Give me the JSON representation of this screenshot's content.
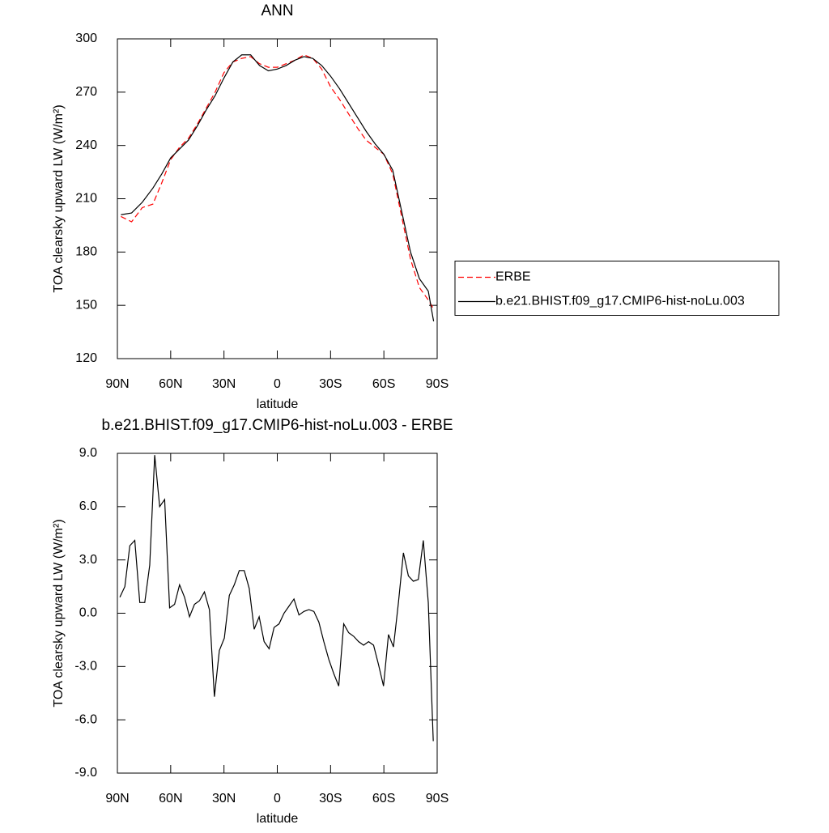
{
  "chart_data": [
    {
      "type": "line",
      "title": "ANN",
      "xlabel": "latitude",
      "ylabel": "TOA clearsky upward LW (W/m²)",
      "x": [
        88,
        82,
        76,
        70,
        65,
        60,
        55,
        50,
        45,
        40,
        35,
        30,
        25,
        20,
        15,
        10,
        5,
        0,
        -5,
        -10,
        -15,
        -20,
        -25,
        -30,
        -35,
        -40,
        -45,
        -50,
        -55,
        -60,
        -65,
        -70,
        -75,
        -80,
        -85,
        -88
      ],
      "series": [
        {
          "name": "ERBE",
          "color": "#ff0000",
          "line_style": "dashed",
          "values": [
            200,
            197,
            205,
            207,
            219,
            232,
            239,
            244,
            252,
            261,
            270,
            281,
            287,
            289,
            290,
            286,
            284,
            284,
            286,
            288,
            291,
            289,
            283,
            273,
            266,
            258,
            250,
            243,
            239,
            235,
            224,
            200,
            176,
            160,
            153,
            148
          ]
        },
        {
          "name": "b.e21.BHIST.f09_g17.CMIP6-hist-noLu.003",
          "color": "#000000",
          "line_style": "solid",
          "values": [
            201,
            202,
            208,
            216,
            224,
            233,
            238,
            243,
            251,
            260,
            268,
            278,
            287,
            291,
            291,
            285,
            282,
            283,
            285,
            288,
            290,
            289,
            285,
            279,
            272,
            264,
            256,
            248,
            241,
            235,
            226,
            203,
            180,
            165,
            158,
            141
          ]
        }
      ],
      "xlim": [
        90,
        -90
      ],
      "xticks": [
        {
          "value": 90,
          "label": "90N"
        },
        {
          "value": 60,
          "label": "60N"
        },
        {
          "value": 30,
          "label": "30N"
        },
        0,
        {
          "value": -30,
          "label": "30S"
        },
        {
          "value": -60,
          "label": "60S"
        },
        {
          "value": -90,
          "label": "90S"
        }
      ],
      "ylim": [
        120,
        300
      ],
      "yticks": [
        120,
        150,
        180,
        210,
        240,
        270,
        300
      ],
      "legend": "right"
    },
    {
      "type": "line",
      "title": "b.e21.BHIST.f09_g17.CMIP6-hist-noLu.003 - ERBE",
      "xlabel": "latitude",
      "ylabel": "TOA clearsky upward LW (W/m²)",
      "x": [
        88.6,
        85.8,
        83.0,
        80.2,
        77.4,
        74.6,
        71.8,
        69.0,
        66.2,
        63.4,
        60.6,
        57.8,
        55.0,
        52.2,
        49.4,
        46.6,
        43.8,
        41.0,
        38.2,
        35.4,
        32.6,
        29.8,
        27.0,
        24.2,
        21.4,
        18.6,
        15.8,
        13.0,
        10.2,
        7.4,
        4.6,
        1.8,
        -1.0,
        -3.8,
        -6.6,
        -9.4,
        -12.2,
        -15.0,
        -17.8,
        -20.6,
        -23.4,
        -26.2,
        -29.0,
        -31.8,
        -34.6,
        -37.4,
        -40.2,
        -43.0,
        -45.8,
        -48.6,
        -51.4,
        -54.2,
        -57.0,
        -59.8,
        -62.6,
        -65.4,
        -68.2,
        -71.0,
        -73.8,
        -76.6,
        -79.4,
        -82.2,
        -85.0,
        -87.8
      ],
      "values": [
        0.9,
        1.5,
        3.8,
        4.1,
        0.6,
        0.6,
        2.7,
        8.9,
        6.0,
        6.4,
        0.3,
        0.5,
        1.6,
        0.9,
        -0.2,
        0.5,
        0.7,
        1.2,
        0.2,
        -4.7,
        -2.1,
        -1.4,
        1.0,
        1.6,
        2.4,
        2.4,
        1.4,
        -0.9,
        -0.2,
        -1.6,
        -2.0,
        -0.8,
        -0.6,
        0.0,
        0.4,
        0.8,
        -0.1,
        0.1,
        0.2,
        0.1,
        -0.5,
        -1.6,
        -2.6,
        -3.4,
        -4.1,
        -0.6,
        -1.1,
        -1.3,
        -1.6,
        -1.8,
        -1.6,
        -1.8,
        -2.9,
        -4.1,
        -1.2,
        -1.9,
        0.6,
        3.4,
        2.1,
        1.8,
        1.9,
        4.1,
        0.6,
        -7.2
      ],
      "color": "#000000",
      "xlim": [
        90,
        -90
      ],
      "xticks": [
        {
          "value": 90,
          "label": "90N"
        },
        {
          "value": 60,
          "label": "60N"
        },
        {
          "value": 30,
          "label": "30N"
        },
        0,
        {
          "value": -30,
          "label": "30S"
        },
        {
          "value": -60,
          "label": "60S"
        },
        {
          "value": -90,
          "label": "90S"
        }
      ],
      "ylim": [
        -9,
        9
      ],
      "yticks": [
        {
          "value": -9,
          "label": "-9.0"
        },
        {
          "value": -6,
          "label": "-6.0"
        },
        {
          "value": -3,
          "label": "-3.0"
        },
        {
          "value": 0,
          "label": "0.0"
        },
        {
          "value": 3,
          "label": "3.0"
        },
        {
          "value": 6,
          "label": "6.0"
        },
        {
          "value": 9,
          "label": "9.0"
        }
      ]
    }
  ]
}
